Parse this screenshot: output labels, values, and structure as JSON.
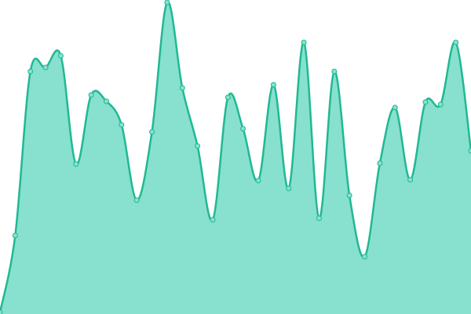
{
  "chart_data": {
    "type": "area",
    "categories": [
      null,
      null,
      null,
      null,
      null,
      null,
      null,
      null,
      null,
      null,
      null,
      null,
      null,
      null,
      null,
      null,
      null,
      null,
      null,
      null,
      null,
      null,
      null,
      null,
      null,
      null,
      null,
      null,
      null,
      null,
      null,
      null
    ],
    "values": [
      2,
      100,
      309,
      314,
      329,
      191,
      279,
      271,
      241,
      145,
      232,
      397,
      288,
      214,
      120,
      276,
      236,
      170,
      292,
      160,
      346,
      122,
      309,
      151,
      73,
      192,
      263,
      171,
      270,
      267,
      346,
      208
    ],
    "ylim": [
      0,
      400
    ],
    "color": "#20b991",
    "fill_color": "#88e0cf"
  }
}
